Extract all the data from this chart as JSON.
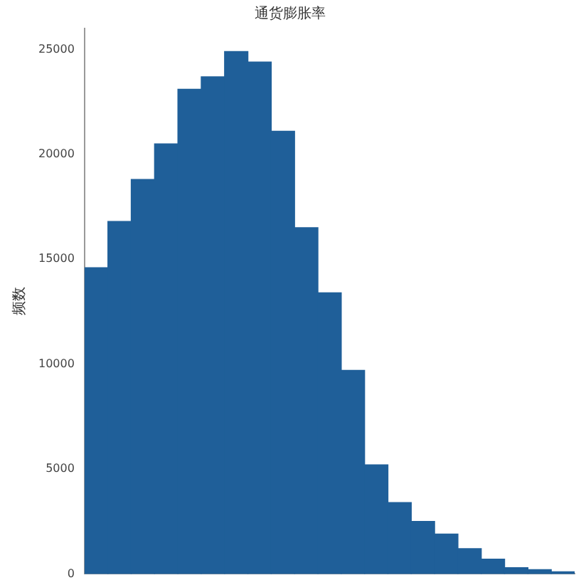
{
  "chart_data": {
    "type": "bar",
    "title": "通货膨胀率",
    "ylabel": "频数",
    "categories": [
      null,
      null,
      null,
      null,
      null,
      null,
      null,
      null,
      null,
      null,
      null,
      null,
      null,
      null,
      null,
      null,
      null,
      null,
      null,
      null,
      null
    ],
    "values": [
      14600,
      16800,
      18800,
      20500,
      23100,
      23700,
      24900,
      24400,
      21100,
      16500,
      13400,
      9700,
      5200,
      3400,
      2500,
      1900,
      1200,
      700,
      300,
      200,
      100
    ],
    "color": "#1f5f99",
    "ylim": [
      0,
      26000
    ],
    "yticks": [
      0,
      5000,
      10000,
      15000,
      20000,
      25000
    ],
    "grid": false,
    "legend": false
  }
}
